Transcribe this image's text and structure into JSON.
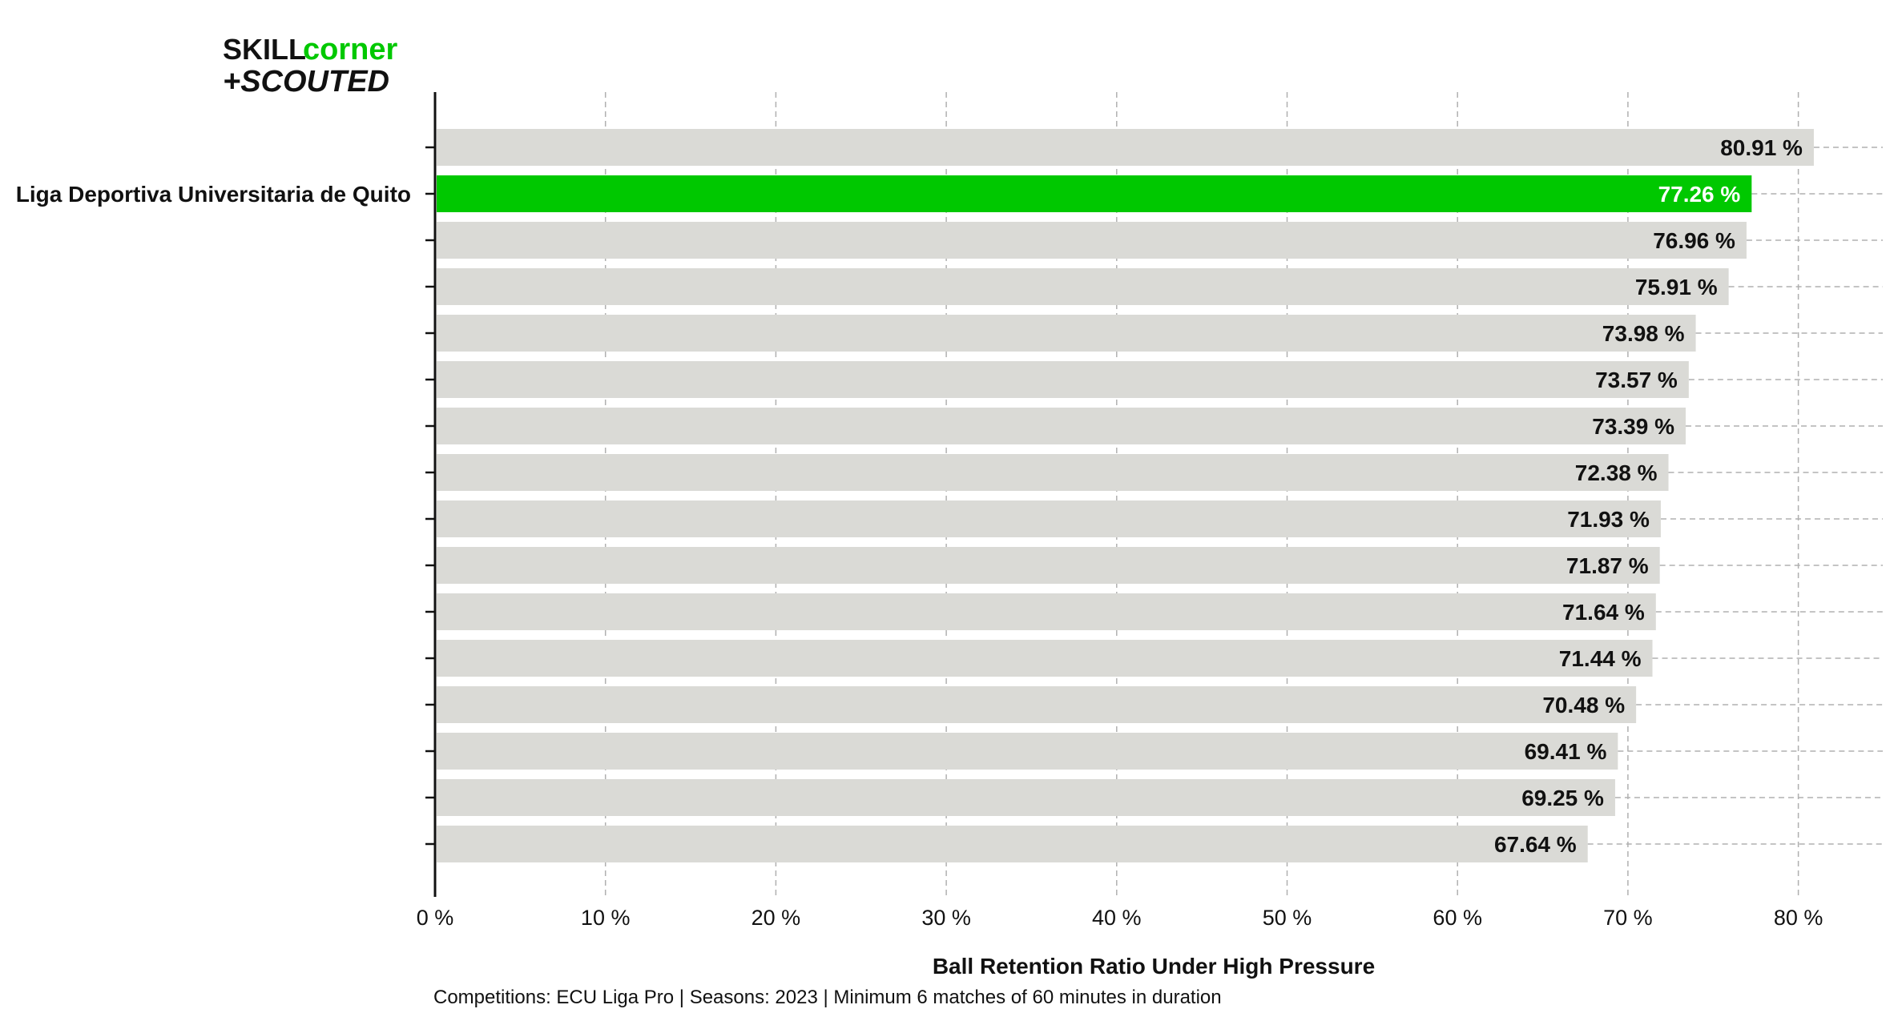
{
  "logo": {
    "line1_a": "SKILL",
    "line1_b": "corner",
    "line2": "+SCOUTED"
  },
  "footer": "Competitions: ECU Liga Pro | Seasons: 2023 | Minimum 6 matches of 60 minutes in duration",
  "colors": {
    "highlight": "#00c800",
    "bar": "#dadad6",
    "axis": "#111111",
    "grid": "#b0b0b0"
  },
  "chart_data": {
    "type": "bar",
    "orientation": "horizontal",
    "xlabel": "Ball Retention Ratio Under High Pressure",
    "xlim": [
      0,
      85
    ],
    "xticks": [
      0,
      10,
      20,
      30,
      40,
      50,
      60,
      70,
      80
    ],
    "xtick_labels": [
      "0 %",
      "10 %",
      "20 %",
      "30 %",
      "40 %",
      "50 %",
      "60 %",
      "70 %",
      "80 %"
    ],
    "grid": "vertical dashed",
    "categories": [
      "",
      "Liga Deportiva Universitaria de Quito",
      "",
      "",
      "",
      "",
      "",
      "",
      "",
      "",
      "",
      "",
      "",
      "",
      "",
      ""
    ],
    "values": [
      80.91,
      77.26,
      76.96,
      75.91,
      73.98,
      73.57,
      73.39,
      72.38,
      71.93,
      71.87,
      71.64,
      71.44,
      70.48,
      69.41,
      69.25,
      67.64
    ],
    "value_labels": [
      "80.91 %",
      "77.26 %",
      "76.96 %",
      "75.91 %",
      "73.98 %",
      "73.57 %",
      "73.39 %",
      "72.38 %",
      "71.93 %",
      "71.87 %",
      "71.64 %",
      "71.44 %",
      "70.48 %",
      "69.41 %",
      "69.25 %",
      "67.64 %"
    ],
    "highlight_index": 1
  }
}
